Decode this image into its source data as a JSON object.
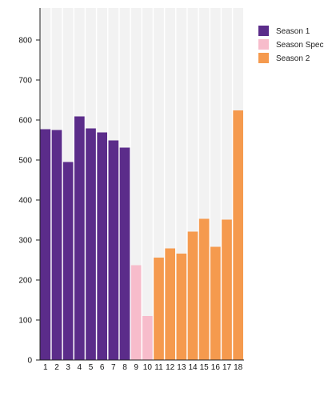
{
  "chart_data": {
    "type": "bar",
    "categories": [
      "1",
      "2",
      "3",
      "4",
      "5",
      "6",
      "7",
      "8",
      "9",
      "10",
      "11",
      "12",
      "13",
      "14",
      "15",
      "16",
      "17",
      "18"
    ],
    "values": [
      577,
      575,
      495,
      609,
      579,
      569,
      549,
      531,
      237,
      110,
      256,
      279,
      266,
      321,
      353,
      283,
      351,
      624
    ],
    "series_assignment": [
      "Season 1",
      "Season 1",
      "Season 1",
      "Season 1",
      "Season 1",
      "Season 1",
      "Season 1",
      "Season 1",
      "Season Special",
      "Season Special",
      "Season 2",
      "Season 2",
      "Season 2",
      "Season 2",
      "Season 2",
      "Season 2",
      "Season 2",
      "Season 2"
    ],
    "series": [
      {
        "name": "Season 1",
        "color": "#5b2c8a"
      },
      {
        "name": "Season Spec",
        "color": "#f7bccb"
      },
      {
        "name": "Season 2",
        "color": "#f59a4e"
      }
    ],
    "ylim": [
      0,
      880
    ],
    "yticks": [
      0,
      100,
      200,
      300,
      400,
      500,
      600,
      700,
      800
    ],
    "background_track_color": "#f2f2f2",
    "grid": false,
    "legend_position": "top-right",
    "title": "",
    "xlabel": "",
    "ylabel": ""
  }
}
